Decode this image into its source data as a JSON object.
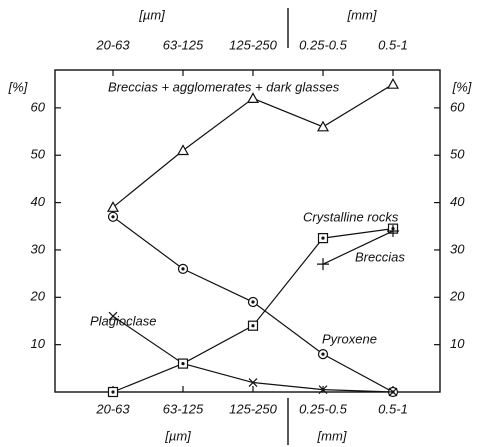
{
  "chart_data": {
    "type": "line",
    "categories": [
      "20-63",
      "63-125",
      "125-250",
      "0.25-0.5",
      "0.5-1"
    ],
    "top_units": [
      "[µm]",
      "[mm]"
    ],
    "bottom_units": [
      "[µm]",
      "[mm]"
    ],
    "ylabel": "[%]",
    "y2label": "[%]",
    "ylim": [
      0,
      68
    ],
    "yticks": [
      10,
      20,
      30,
      40,
      50,
      60
    ],
    "y2lim": [
      0,
      68
    ],
    "y2ticks": [
      10,
      20,
      30,
      40,
      50,
      60
    ],
    "series": [
      {
        "name": "Breccias + agglomerates + dark glasses",
        "color": "#111111",
        "marker": "triangle",
        "values": [
          39,
          51,
          62,
          56,
          65
        ]
      },
      {
        "name": "Pyroxene",
        "color": "#111111",
        "marker": "circle",
        "values": [
          37,
          26,
          19,
          8,
          0
        ]
      },
      {
        "name": "Plagioclase",
        "color": "#111111",
        "marker": "cross",
        "values": [
          16,
          6,
          2,
          0.5,
          0
        ]
      },
      {
        "name": "Crystalline rocks",
        "color": "#111111",
        "marker": "square",
        "values": [
          0,
          6,
          14,
          32.5,
          34.5
        ]
      },
      {
        "name": "Breccias",
        "color": "#111111",
        "marker": "plus",
        "values": [
          null,
          null,
          null,
          27,
          34
        ]
      }
    ]
  }
}
